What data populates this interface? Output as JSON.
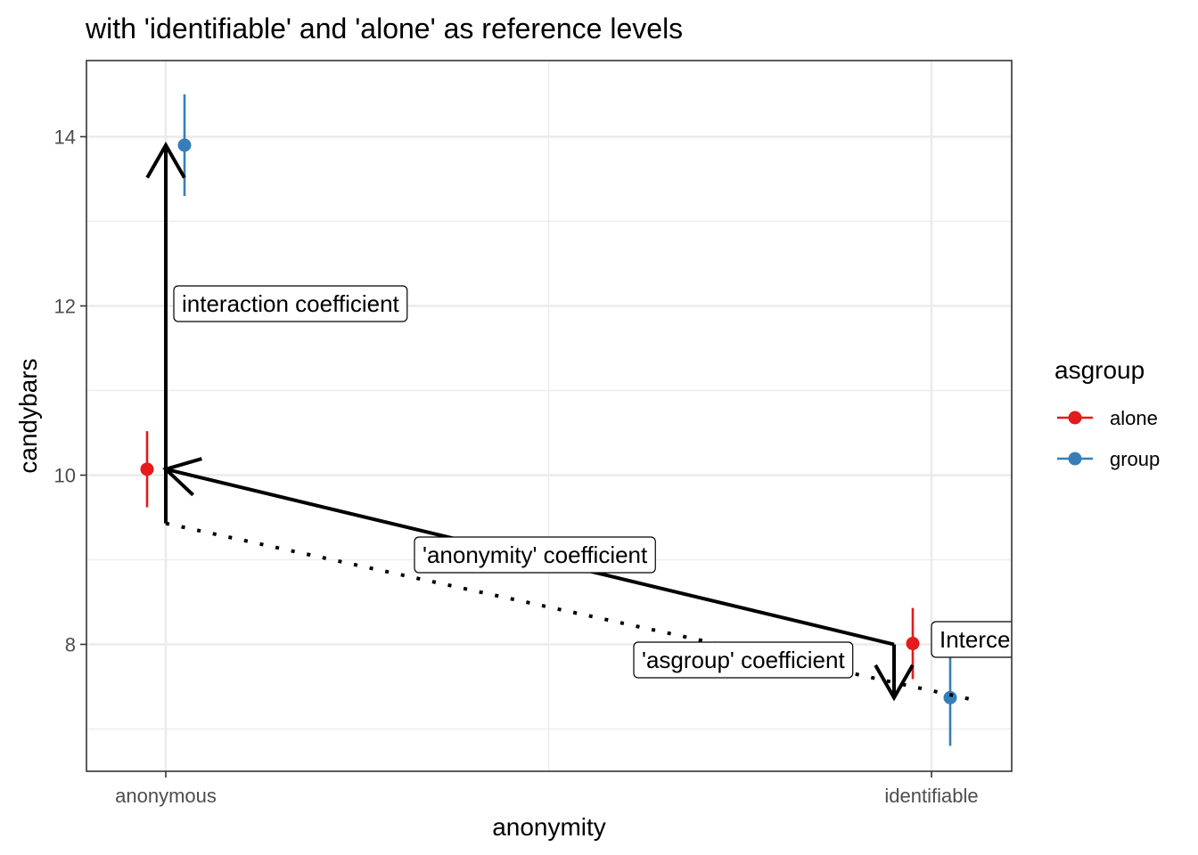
{
  "chart_data": {
    "type": "scatter",
    "title": "with 'identifiable' and 'alone' as reference levels",
    "xlabel": "anonymity",
    "ylabel": "candybars",
    "categories": [
      "anonymous",
      "identifiable"
    ],
    "ylim": [
      6.5,
      14.9
    ],
    "yticks": [
      8,
      10,
      12,
      14
    ],
    "grid": true,
    "legend": {
      "title": "asgroup",
      "placement": "right",
      "entries": [
        {
          "name": "alone",
          "color": "#E41A1C"
        },
        {
          "name": "group",
          "color": "#377EB8"
        }
      ]
    },
    "series": [
      {
        "name": "alone",
        "color": "#E41A1C",
        "points": [
          {
            "x": "anonymous",
            "y": 10.07,
            "lower": 9.62,
            "upper": 10.52
          },
          {
            "x": "identifiable",
            "y": 8.01,
            "lower": 7.59,
            "upper": 8.43
          }
        ]
      },
      {
        "name": "group",
        "color": "#377EB8",
        "points": [
          {
            "x": "anonymous",
            "y": 13.9,
            "lower": 13.3,
            "upper": 14.5
          },
          {
            "x": "identifiable",
            "y": 7.37,
            "lower": 6.8,
            "upper": 7.95
          }
        ]
      }
    ],
    "annotations": [
      {
        "text": "interaction coefficient",
        "x": "anonymous",
        "y": 11.96
      },
      {
        "text": "'anonymity' coefficient",
        "x": "anonymous",
        "y": 8.97
      },
      {
        "text": "'asgroup' coefficient",
        "x": "identifiable",
        "y": 7.75
      },
      {
        "text": "Intercept",
        "x": "identifiable",
        "y": 7.98
      }
    ]
  }
}
